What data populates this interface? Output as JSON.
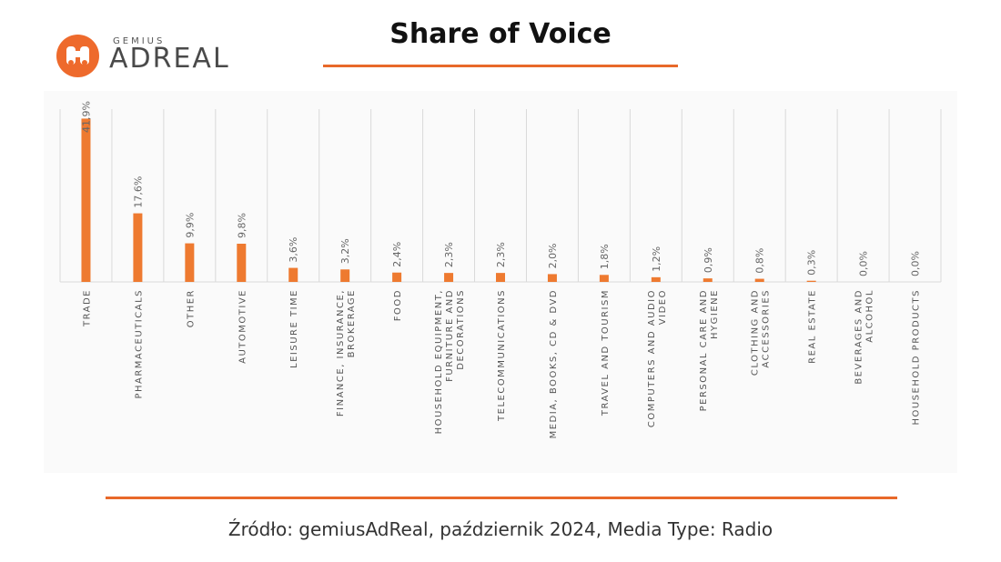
{
  "logo": {
    "top_text": "GEMIUS",
    "main_text": "ADREAL"
  },
  "title": "Share of Voice",
  "source": "Źródło: gemiusAdReal, październik 2024, Media Type: Radio",
  "colors": {
    "bar": "#ee7a30",
    "accent": "#e8692a",
    "grid": "#d9d9d9"
  },
  "chart_data": {
    "type": "bar",
    "categories": [
      [
        "TRADE"
      ],
      [
        "PHARMACEUTICALS"
      ],
      [
        "OTHER"
      ],
      [
        "AUTOMOTIVE"
      ],
      [
        "LEISURE TIME"
      ],
      [
        "FINANCE, INSURANCE,",
        "BROKERAGE"
      ],
      [
        "FOOD"
      ],
      [
        "HOUSEHOLD EQUIPMENT,",
        "FURNITURE AND",
        "DECORATIONS"
      ],
      [
        "TELECOMMUNICATIONS"
      ],
      [
        "MEDIA, BOOKS, CD & DVD"
      ],
      [
        "TRAVEL AND TOURISM"
      ],
      [
        "COMPUTERS AND AUDIO",
        "VIDEO"
      ],
      [
        "PERSONAL CARE AND",
        "HYGIENE"
      ],
      [
        "CLOTHING AND",
        "ACCESSORIES"
      ],
      [
        "REAL ESTATE"
      ],
      [
        "BEVERAGES AND",
        "ALCOHOL"
      ],
      [
        "HOUSEHOLD PRODUCTS"
      ]
    ],
    "values": [
      41.9,
      17.6,
      9.9,
      9.8,
      3.6,
      3.2,
      2.4,
      2.3,
      2.3,
      2.0,
      1.8,
      1.2,
      0.9,
      0.8,
      0.3,
      0.0,
      0.0
    ],
    "labels": [
      "41,9%",
      "17,6%",
      "9,9%",
      "9,8%",
      "3,6%",
      "3,2%",
      "2,4%",
      "2,3%",
      "2,3%",
      "2,0%",
      "1,8%",
      "1,2%",
      "0,9%",
      "0,8%",
      "0,3%",
      "0,0%",
      "0,0%"
    ],
    "ylim": [
      0,
      42
    ],
    "grid": true
  }
}
